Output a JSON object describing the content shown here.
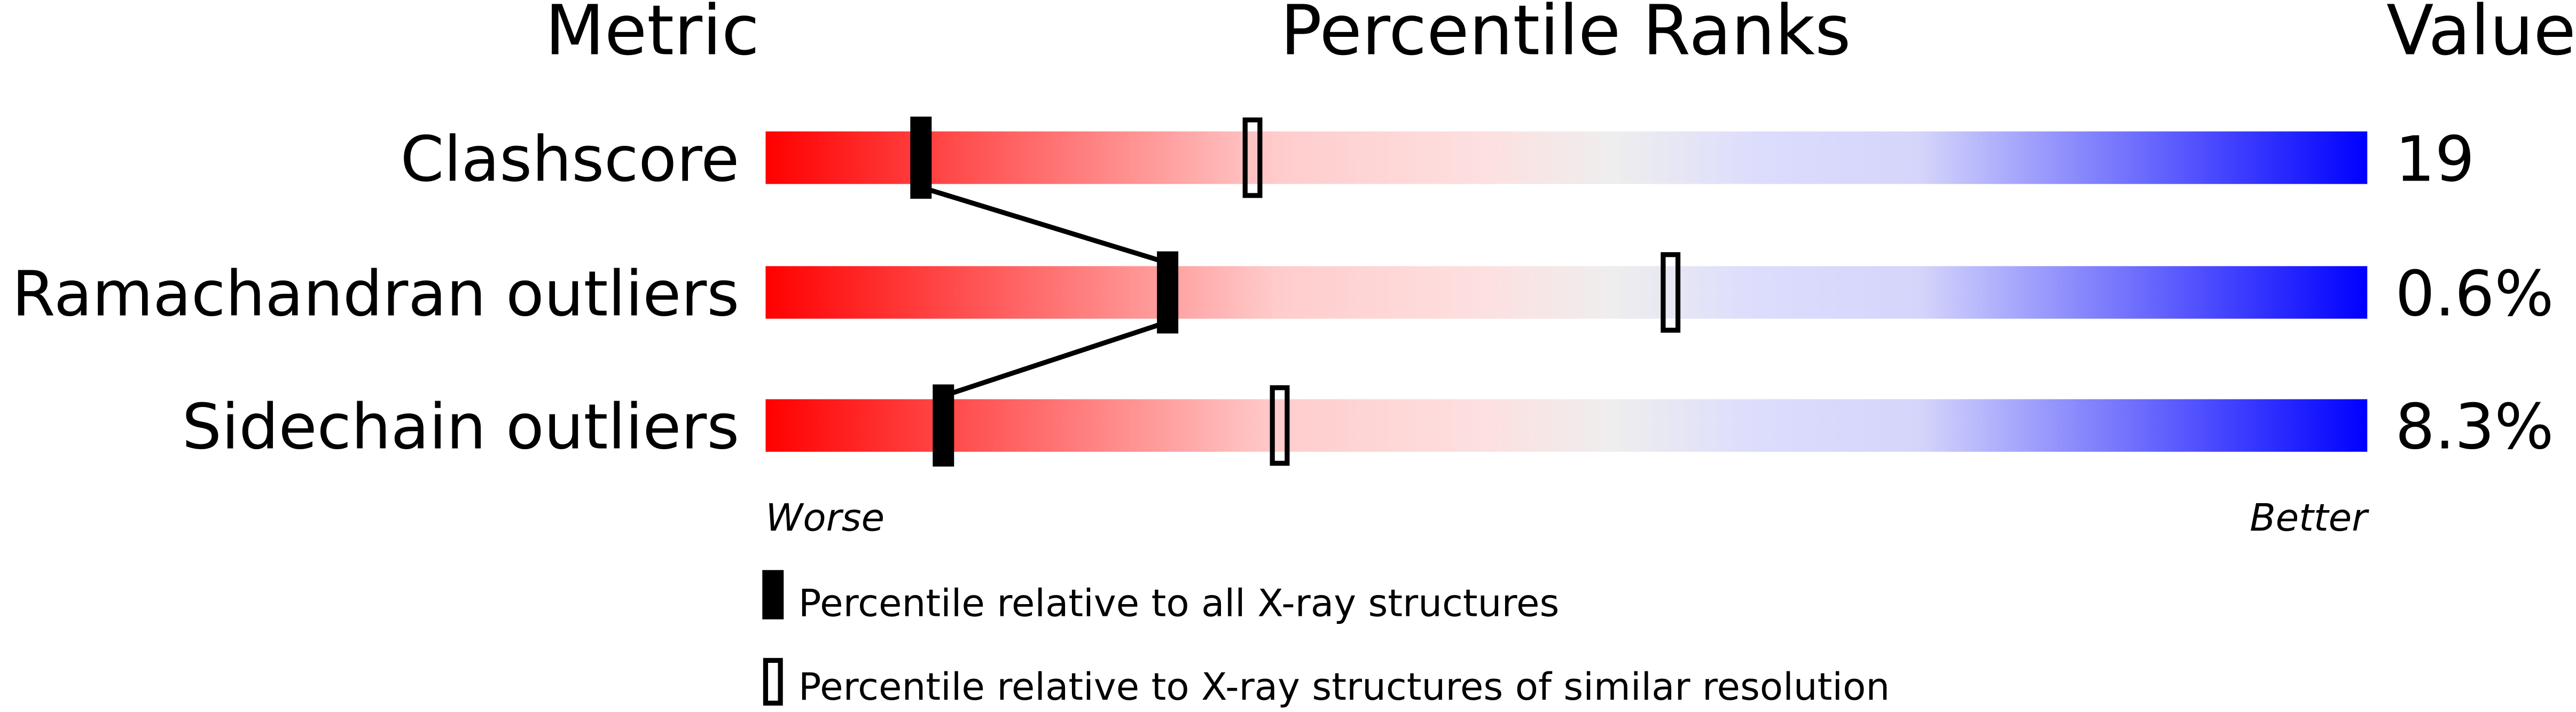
{
  "chart_data": {
    "type": "percentile-slider",
    "headers": {
      "metric": "Metric",
      "ranks": "Percentile Ranks",
      "value": "Value"
    },
    "axis": {
      "left_label": "Worse",
      "right_label": "Better",
      "range": [
        0,
        100
      ]
    },
    "series": [
      {
        "name": "Percentile relative to all X-ray structures",
        "marker": "filled"
      },
      {
        "name": "Percentile relative to X-ray structures of similar resolution",
        "marker": "hollow"
      }
    ],
    "rows": [
      {
        "metric": "Clashscore",
        "value": "19",
        "percentile_all": 9.7,
        "percentile_similar": 30.4
      },
      {
        "metric": "Ramachandran outliers",
        "value": "0.6%",
        "percentile_all": 25.1,
        "percentile_similar": 56.5
      },
      {
        "metric": "Sidechain outliers",
        "value": "8.3%",
        "percentile_all": 11.1,
        "percentile_similar": 32.1
      }
    ],
    "gradient_colors": [
      "#ff0000",
      "#ffdddd",
      "#eeeeee",
      "#ddddff",
      "#0000ff"
    ]
  }
}
